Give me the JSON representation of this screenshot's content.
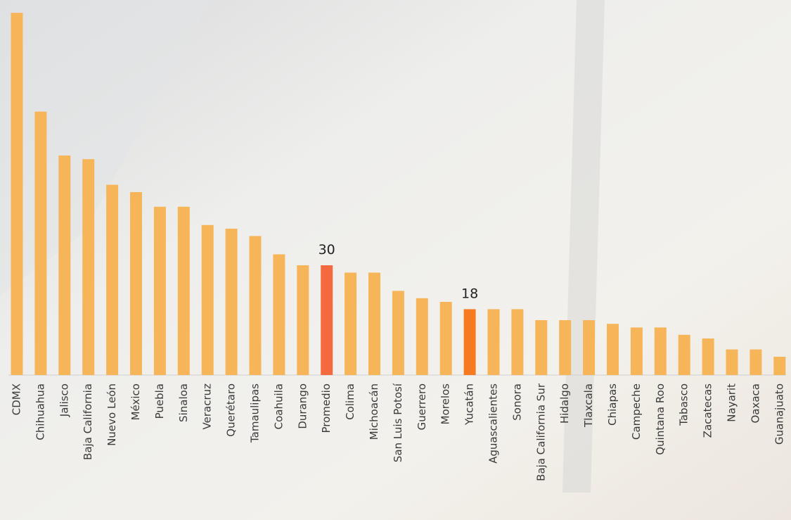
{
  "chart_data": {
    "type": "bar",
    "categories": [
      "CDMX",
      "Chihuahua",
      "Jalisco",
      "Baja California",
      "Nuevo León",
      "México",
      "Puebla",
      "Sinaloa",
      "Veracruz",
      "Querétaro",
      "Tamaulipas",
      "Coahuila",
      "Durango",
      "Promedio",
      "Colima",
      "Michoacán",
      "San Luis Potosí",
      "Guerrero",
      "Morelos",
      "Yucatán",
      "Aguascalientes",
      "Sonora",
      "Baja California Sur",
      "Hidalgo",
      "Tlaxcala",
      "Chiapas",
      "Campeche",
      "Quintana Roo",
      "Tabasco",
      "Zacatecas",
      "Nayarit",
      "Oaxaca",
      "Guanajuato"
    ],
    "values": [
      99,
      72,
      60,
      59,
      52,
      50,
      46,
      46,
      41,
      40,
      38,
      33,
      30,
      30,
      28,
      28,
      23,
      21,
      20,
      18,
      18,
      18,
      15,
      15,
      15,
      14,
      13,
      13,
      11,
      10,
      7,
      7,
      5
    ],
    "color": "#f7b55a",
    "highlights": [
      {
        "category": "Promedio",
        "color": "#f5693f"
      },
      {
        "category": "Yucatán",
        "color": "#f57a20"
      }
    ],
    "ylim": [
      0,
      100
    ]
  }
}
